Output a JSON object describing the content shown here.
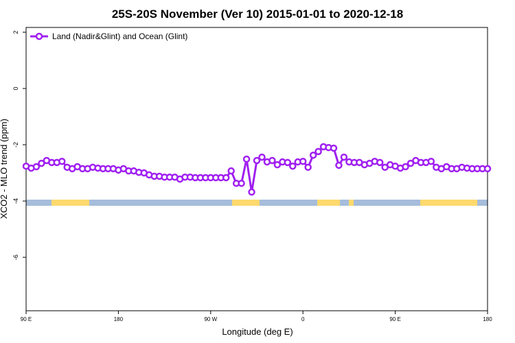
{
  "chart_data": {
    "type": "line",
    "title": "25S-20S November (Ver 10)   2015-01-01 to 2020-12-18",
    "x_label": "Longitude (deg E)",
    "y_label": "XCO2 - MLO trend (ppm)",
    "x": [
      90,
      95,
      100,
      105,
      110,
      115,
      120,
      125,
      130,
      135,
      140,
      145,
      150,
      155,
      160,
      165,
      170,
      175,
      180,
      185,
      190,
      195,
      200,
      205,
      210,
      215,
      220,
      225,
      230,
      235,
      240,
      245,
      250,
      255,
      260,
      265,
      270,
      275,
      280,
      285,
      290,
      295,
      300,
      305,
      310,
      315,
      320,
      325,
      330,
      335,
      340,
      345,
      350,
      355,
      360,
      365,
      370,
      375,
      380,
      385,
      390,
      395,
      400,
      405,
      410,
      415,
      420,
      425,
      430,
      435,
      440,
      445,
      450,
      455,
      460,
      465,
      470,
      475,
      480,
      485,
      490,
      495,
      500,
      505,
      510,
      515,
      520,
      525,
      530,
      535,
      540
    ],
    "series": [
      {
        "name": "Land (Nadir&Glint) and Ocean (Glint)",
        "color": "#a020f0",
        "values": [
          -2.76,
          -2.83,
          -2.78,
          -2.66,
          -2.56,
          -2.63,
          -2.63,
          -2.59,
          -2.8,
          -2.85,
          -2.78,
          -2.85,
          -2.85,
          -2.8,
          -2.83,
          -2.85,
          -2.85,
          -2.85,
          -2.9,
          -2.85,
          -2.93,
          -2.93,
          -2.98,
          -3.0,
          -3.07,
          -3.12,
          -3.12,
          -3.15,
          -3.15,
          -3.15,
          -3.22,
          -3.15,
          -3.15,
          -3.17,
          -3.17,
          -3.17,
          -3.17,
          -3.17,
          -3.17,
          -3.17,
          -2.93,
          -3.37,
          -3.37,
          -2.51,
          -3.68,
          -2.56,
          -2.44,
          -2.61,
          -2.56,
          -2.71,
          -2.61,
          -2.63,
          -2.76,
          -2.61,
          -2.59,
          -2.8,
          -2.37,
          -2.24,
          -2.07,
          -2.1,
          -2.12,
          -2.73,
          -2.44,
          -2.61,
          -2.63,
          -2.63,
          -2.71,
          -2.66,
          -2.59,
          -2.63,
          -2.8,
          -2.71,
          -2.76,
          -2.83,
          -2.78,
          -2.66,
          -2.56,
          -2.63,
          -2.63,
          -2.59,
          -2.8,
          -2.85,
          -2.78,
          -2.85,
          -2.85,
          -2.8,
          -2.83,
          -2.85,
          -2.85,
          -2.85,
          -2.85
        ]
      }
    ],
    "xlim": [
      90,
      540
    ],
    "xticks": [
      {
        "value": 90,
        "label": "90 E"
      },
      180,
      {
        "value": 270,
        "label": "90 W"
      },
      {
        "value": 360,
        "label": "0"
      },
      {
        "value": 450,
        "label": "90 E"
      },
      {
        "value": 540,
        "label": "180"
      }
    ],
    "ylim": [
      -7.9,
      2.17
    ],
    "yticks": [
      -6,
      -4,
      -2,
      0,
      2
    ],
    "legend": "top-left"
  }
}
